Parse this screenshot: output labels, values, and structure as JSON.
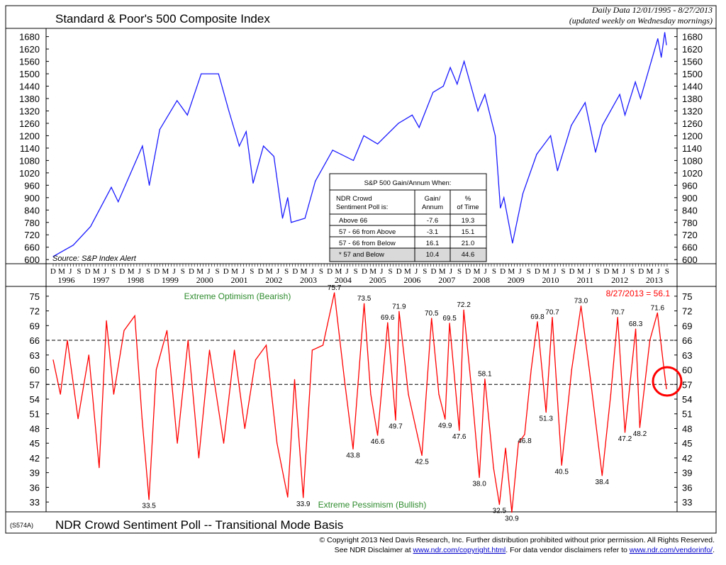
{
  "header": {
    "title": "Standard & Poor's 500 Composite Index",
    "date_range": "Daily Data 12/01/1995 - 8/27/2013",
    "update_note": "(updated weekly on Wednesday mornings)"
  },
  "footer": {
    "code": "(S574A)",
    "bottom_title": "NDR Crowd Sentiment Poll -- Transitional Mode Basis",
    "copyright_line1": "© Copyright 2013 Ned Davis Research, Inc.  Further distribution prohibited without prior permission.  All Rights Reserved.",
    "copyright_line2_pre": "See NDR Disclaimer at ",
    "link1": "www.ndr.com/copyright.html",
    "copyright_line2_mid": ".  For data vendor disclaimers refer to ",
    "link2": "www.ndr.com/vendorinfo/",
    "copyright_line2_post": "."
  },
  "table": {
    "title": "S&P 500 Gain/Annum When:",
    "headers": [
      "NDR Crowd Sentiment Poll is:",
      "Gain/ Annum",
      "% of Time"
    ],
    "rows": [
      [
        "Above 66",
        "-7.6",
        "19.3"
      ],
      [
        "57 - 66 from Above",
        "-3.1",
        "15.1"
      ],
      [
        "57 - 66 from Below",
        "16.1",
        "21.0"
      ],
      [
        "* 57 and Below",
        "10.4",
        "44.6"
      ]
    ]
  },
  "chart_data": [
    {
      "type": "line",
      "title": "Standard & Poor's 500 Composite Index",
      "source": "Source: S&P Index Alert",
      "color": "#1a1aff",
      "xlim": [
        1995.92,
        2013.65
      ],
      "ylim": [
        580,
        1720
      ],
      "yticks": [
        600,
        660,
        720,
        780,
        840,
        900,
        960,
        1020,
        1080,
        1140,
        1200,
        1260,
        1320,
        1380,
        1440,
        1500,
        1560,
        1620,
        1680
      ],
      "x": [
        1995.92,
        1996.5,
        1997.0,
        1997.6,
        1997.8,
        1998.5,
        1998.7,
        1999.0,
        1999.5,
        1999.8,
        2000.2,
        2000.7,
        2001.0,
        2001.3,
        2001.5,
        2001.7,
        2002.0,
        2002.3,
        2002.55,
        2002.7,
        2002.8,
        2003.2,
        2003.5,
        2004.0,
        2004.6,
        2004.9,
        2005.3,
        2005.9,
        2006.3,
        2006.5,
        2006.9,
        2007.2,
        2007.4,
        2007.6,
        2007.8,
        2008.2,
        2008.4,
        2008.7,
        2008.85,
        2008.95,
        2009.2,
        2009.5,
        2009.9,
        2010.3,
        2010.5,
        2010.9,
        2011.3,
        2011.6,
        2011.8,
        2012.3,
        2012.45,
        2012.75,
        2012.9,
        2013.4,
        2013.5,
        2013.6,
        2013.65
      ],
      "y": [
        615,
        670,
        760,
        950,
        880,
        1150,
        960,
        1230,
        1370,
        1300,
        1500,
        1500,
        1320,
        1150,
        1220,
        970,
        1150,
        1100,
        800,
        900,
        780,
        800,
        980,
        1130,
        1080,
        1200,
        1160,
        1260,
        1300,
        1240,
        1410,
        1440,
        1530,
        1450,
        1560,
        1320,
        1400,
        1200,
        850,
        900,
        680,
        920,
        1110,
        1200,
        1030,
        1250,
        1360,
        1120,
        1250,
        1400,
        1300,
        1460,
        1380,
        1670,
        1580,
        1700,
        1640
      ]
    },
    {
      "type": "line",
      "title": "NDR Crowd Sentiment Poll -- Transitional Mode Basis",
      "color": "#ff0000",
      "xlim": [
        1995.92,
        2013.65
      ],
      "ylim": [
        31,
        77
      ],
      "yticks": [
        33,
        36,
        39,
        42,
        45,
        48,
        51,
        54,
        57,
        60,
        63,
        66,
        69,
        72,
        75
      ],
      "reference_lines": [
        66,
        57
      ],
      "zone_labels": {
        "upper": "Extreme Optimism (Bearish)",
        "lower": "Extreme Pessimism (Bullish)"
      },
      "latest_label": "8/27/2013 = 56.1",
      "x": [
        1995.92,
        1996.13,
        1996.33,
        1996.64,
        1996.95,
        1997.25,
        1997.46,
        1997.67,
        1997.97,
        1998.28,
        1998.49,
        1998.69,
        1998.9,
        1999.21,
        1999.51,
        1999.82,
        2000.13,
        2000.44,
        2000.85,
        2001.16,
        2001.46,
        2001.77,
        2002.08,
        2002.39,
        2002.7,
        2002.9,
        2003.15,
        2003.41,
        2003.72,
        2004.05,
        2004.34,
        2004.59,
        2004.91,
        2005.1,
        2005.3,
        2005.59,
        2005.82,
        2005.92,
        2006.19,
        2006.58,
        2006.86,
        2007.07,
        2007.25,
        2007.38,
        2007.66,
        2007.79,
        2008.03,
        2008.24,
        2008.4,
        2008.65,
        2008.82,
        2009.0,
        2009.18,
        2009.37,
        2009.55,
        2009.74,
        2009.92,
        2010.17,
        2010.35,
        2010.62,
        2010.91,
        2011.18,
        2011.42,
        2011.79,
        2012.04,
        2012.24,
        2012.45,
        2012.76,
        2012.88,
        2013.17,
        2013.39,
        2013.58,
        2013.65
      ],
      "y": [
        62,
        55,
        66,
        50,
        63,
        40,
        70,
        55,
        68,
        71,
        50,
        33.5,
        60,
        68,
        45,
        66,
        42,
        64,
        45,
        64,
        48,
        62,
        65,
        45,
        34,
        58,
        33.9,
        64,
        65,
        75.7,
        58,
        43.8,
        73.5,
        55,
        46.6,
        69.6,
        49.7,
        71.9,
        55,
        42.5,
        70.5,
        55,
        49.9,
        69.5,
        47.6,
        72.2,
        55,
        38.0,
        58.1,
        40,
        32.5,
        44,
        30.9,
        45,
        46.8,
        60,
        69.8,
        51.3,
        70.7,
        40.5,
        60,
        73.0,
        60,
        38.4,
        55,
        70.7,
        47.2,
        68.3,
        48.2,
        66,
        71.6,
        60,
        56.1
      ],
      "annotations": [
        {
          "x": 1998.69,
          "y": 33.5,
          "label": "33.5",
          "pos": "below"
        },
        {
          "x": 2003.15,
          "y": 33.9,
          "label": "33.9",
          "pos": "below"
        },
        {
          "x": 2004.05,
          "y": 75.7,
          "label": "75.7",
          "pos": "above"
        },
        {
          "x": 2004.59,
          "y": 43.8,
          "label": "43.8",
          "pos": "below"
        },
        {
          "x": 2004.91,
          "y": 73.5,
          "label": "73.5",
          "pos": "above"
        },
        {
          "x": 2005.3,
          "y": 46.6,
          "label": "46.6",
          "pos": "below"
        },
        {
          "x": 2005.59,
          "y": 69.6,
          "label": "69.6",
          "pos": "above"
        },
        {
          "x": 2005.82,
          "y": 49.7,
          "label": "49.7",
          "pos": "below"
        },
        {
          "x": 2005.92,
          "y": 71.9,
          "label": "71.9",
          "pos": "above"
        },
        {
          "x": 2006.58,
          "y": 42.5,
          "label": "42.5",
          "pos": "below"
        },
        {
          "x": 2006.86,
          "y": 70.5,
          "label": "70.5",
          "pos": "above"
        },
        {
          "x": 2007.25,
          "y": 49.9,
          "label": "49.9",
          "pos": "below"
        },
        {
          "x": 2007.38,
          "y": 69.5,
          "label": "69.5",
          "pos": "above"
        },
        {
          "x": 2007.66,
          "y": 47.6,
          "label": "47.6",
          "pos": "below"
        },
        {
          "x": 2007.79,
          "y": 72.2,
          "label": "72.2",
          "pos": "above"
        },
        {
          "x": 2008.24,
          "y": 38.0,
          "label": "38.0",
          "pos": "below"
        },
        {
          "x": 2008.4,
          "y": 58.1,
          "label": "58.1",
          "pos": "above"
        },
        {
          "x": 2008.82,
          "y": 32.5,
          "label": "32.5",
          "pos": "below"
        },
        {
          "x": 2009.18,
          "y": 30.9,
          "label": "30.9",
          "pos": "below"
        },
        {
          "x": 2009.55,
          "y": 46.8,
          "label": "46.8",
          "pos": "below"
        },
        {
          "x": 2009.92,
          "y": 69.8,
          "label": "69.8",
          "pos": "above"
        },
        {
          "x": 2010.17,
          "y": 51.3,
          "label": "51.3",
          "pos": "below"
        },
        {
          "x": 2010.35,
          "y": 70.7,
          "label": "70.7",
          "pos": "above"
        },
        {
          "x": 2010.62,
          "y": 40.5,
          "label": "40.5",
          "pos": "below"
        },
        {
          "x": 2011.18,
          "y": 73.0,
          "label": "73.0",
          "pos": "above"
        },
        {
          "x": 2011.79,
          "y": 38.4,
          "label": "38.4",
          "pos": "below"
        },
        {
          "x": 2012.24,
          "y": 70.7,
          "label": "70.7",
          "pos": "above"
        },
        {
          "x": 2012.45,
          "y": 47.2,
          "label": "47.2",
          "pos": "below"
        },
        {
          "x": 2012.76,
          "y": 68.3,
          "label": "68.3",
          "pos": "above"
        },
        {
          "x": 2012.88,
          "y": 48.2,
          "label": "48.2",
          "pos": "below"
        },
        {
          "x": 2013.39,
          "y": 71.6,
          "label": "71.6",
          "pos": "above"
        }
      ]
    }
  ],
  "x_axis": {
    "month_letters": [
      "D",
      "M",
      "J",
      "S"
    ],
    "years": [
      "1996",
      "1997",
      "1998",
      "1999",
      "2000",
      "2001",
      "2002",
      "2003",
      "2004",
      "2005",
      "2006",
      "2007",
      "2008",
      "2009",
      "2010",
      "2011",
      "2012",
      "2013"
    ]
  },
  "colors": {
    "sp500": "#1a1aff",
    "sentiment": "#ff0000",
    "zone_text": "#2e8b2e",
    "highlight_circle": "#ff0000"
  }
}
